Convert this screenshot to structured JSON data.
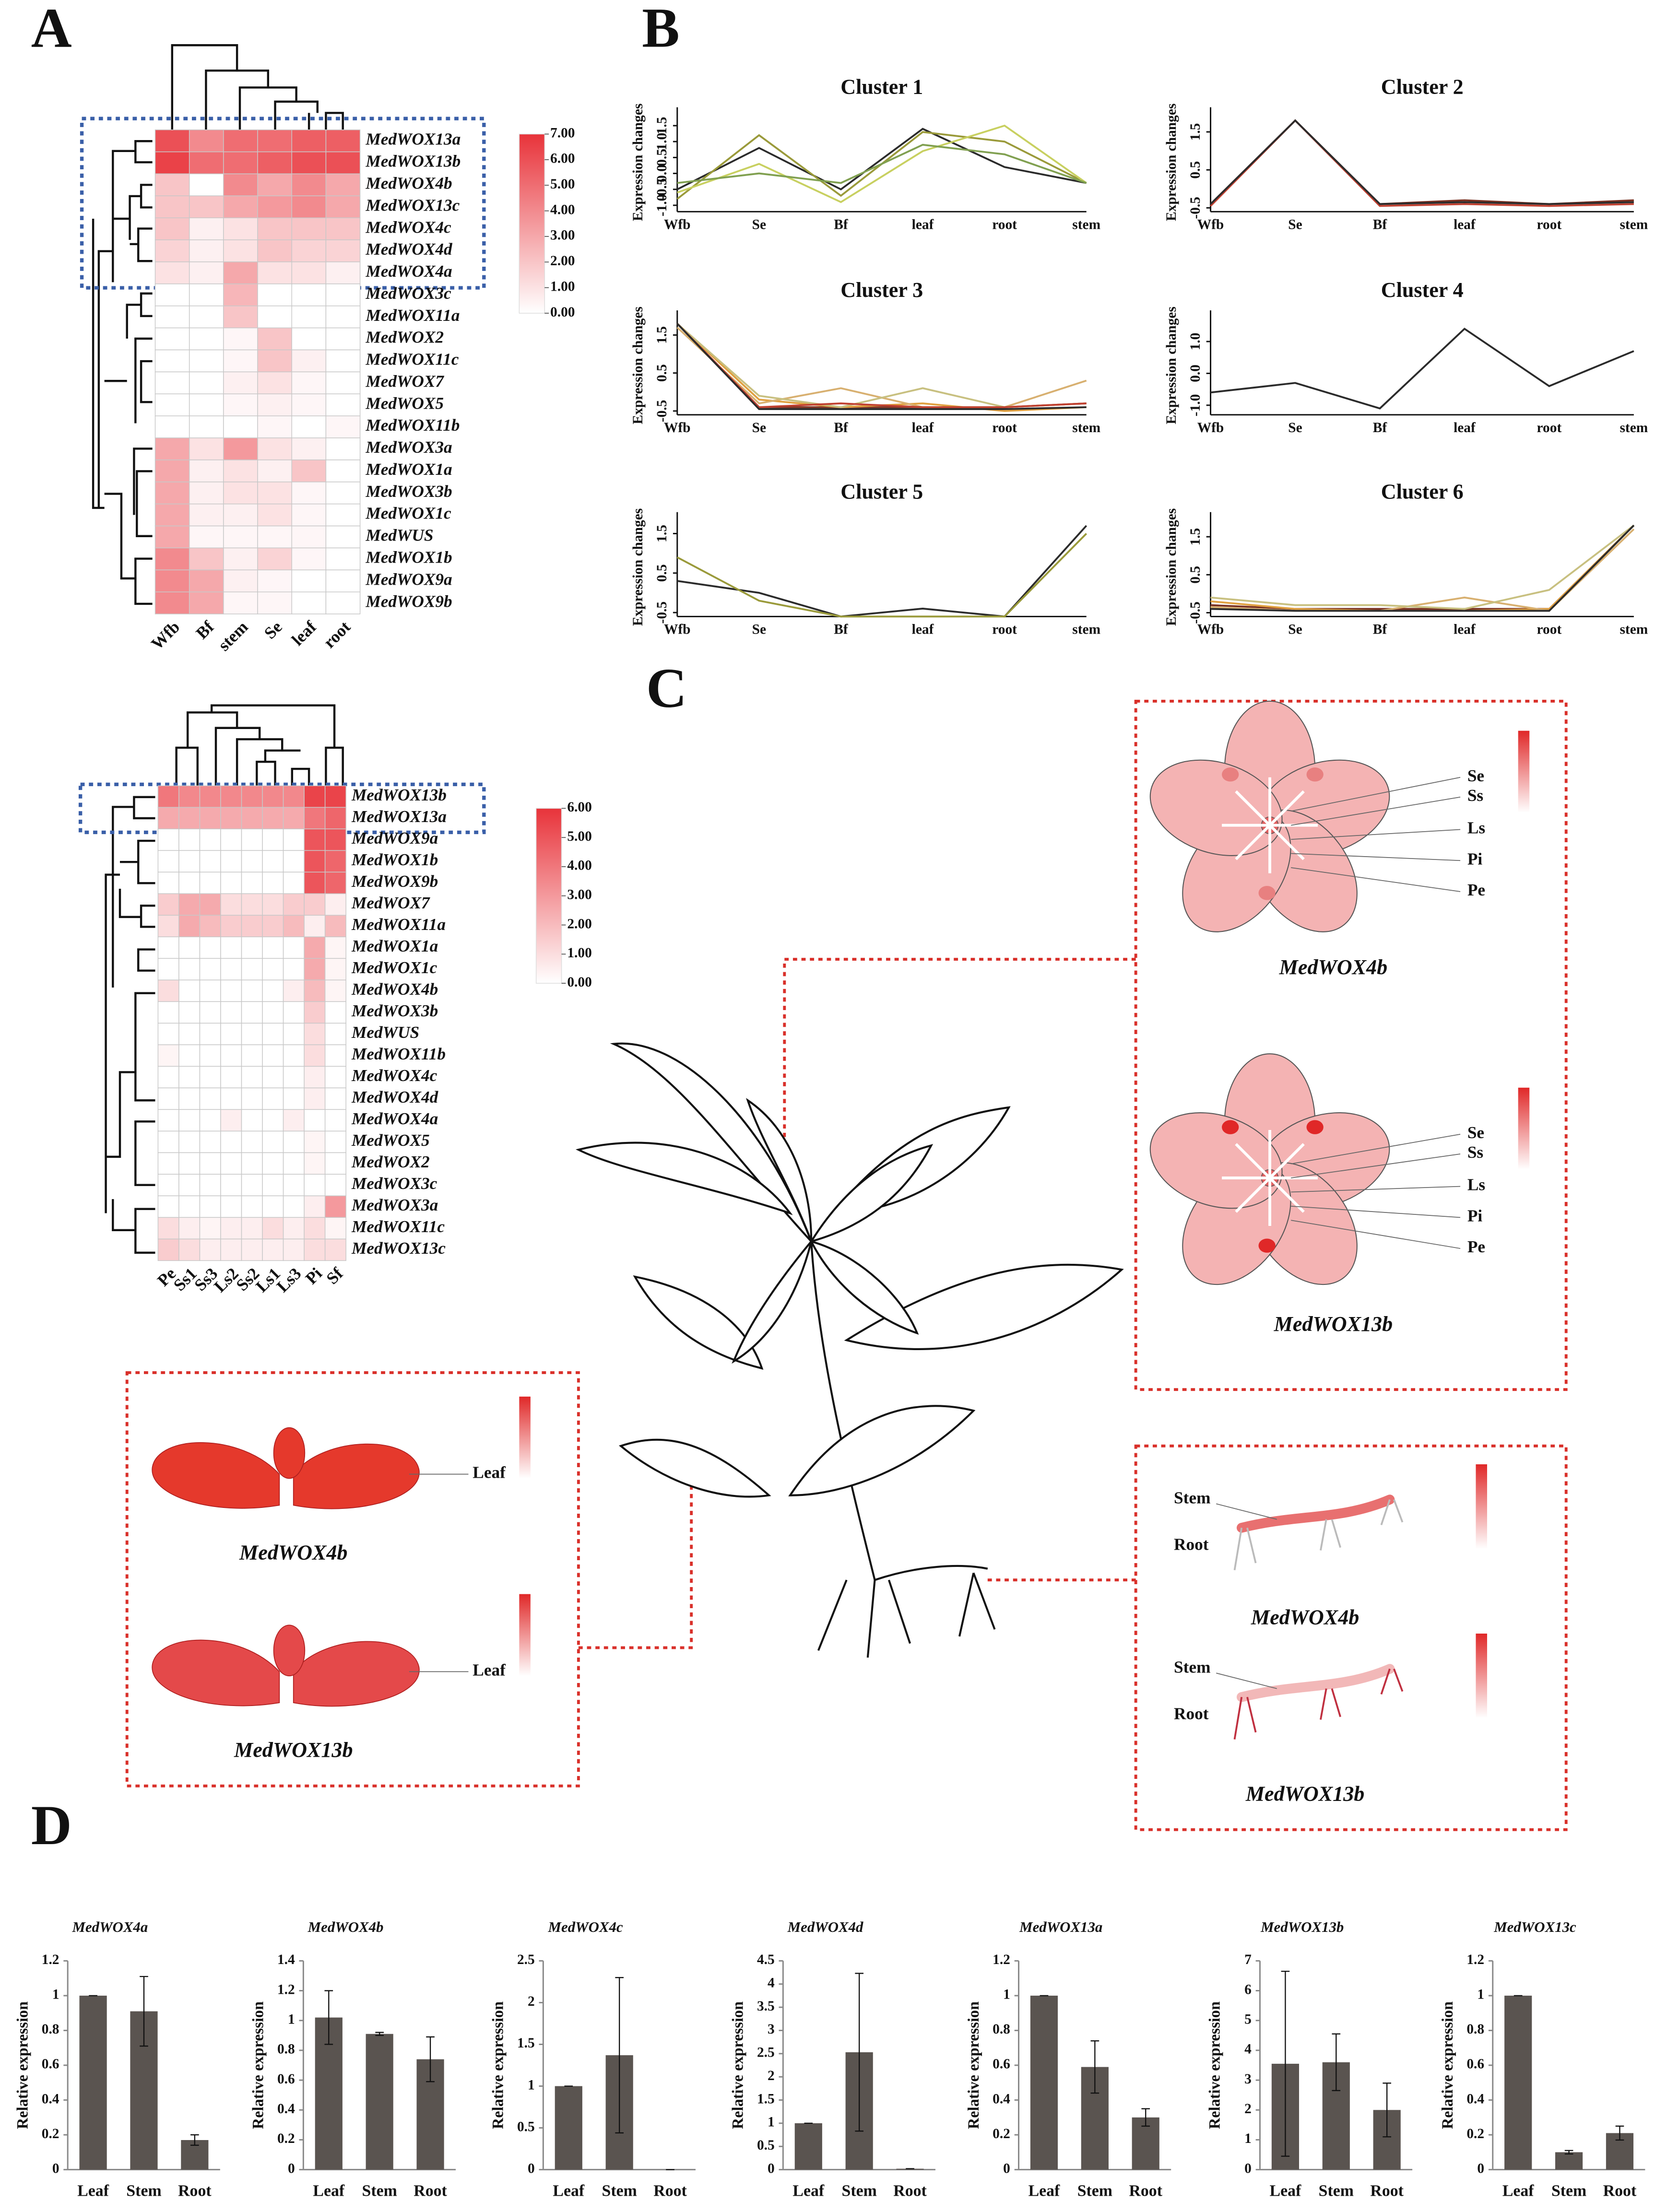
{
  "panel_labels": [
    "A",
    "B",
    "C",
    "D"
  ],
  "chart_data": [
    {
      "type": "heatmap",
      "columns": [
        "Wfb",
        "Bf",
        "stem",
        "Se",
        "leaf",
        "root"
      ],
      "rows": [
        "MedWOX13a",
        "MedWOX13b",
        "MedWOX4b",
        "MedWOX13c",
        "MedWOX4c",
        "MedWOX4d",
        "MedWOX4a",
        "MedWOX3c",
        "MedWOX11a",
        "MedWOX2",
        "MedWOX11c",
        "MedWOX7",
        "MedWOX5",
        "MedWOX11b",
        "MedWOX3a",
        "MedWOX1a",
        "MedWOX3b",
        "MedWOX1c",
        "MedWUS",
        "MedWOX1b",
        "MedWOX9a",
        "MedWOX9b"
      ],
      "values": [
        [
          6,
          4,
          5,
          5,
          5.5,
          5.5
        ],
        [
          6.5,
          5,
          5,
          5.5,
          6,
          6
        ],
        [
          2,
          0,
          4,
          3,
          4,
          3
        ],
        [
          2,
          2,
          3,
          3.5,
          4,
          3
        ],
        [
          2,
          0.5,
          1,
          2,
          2,
          2
        ],
        [
          1.5,
          0.5,
          1,
          2,
          1.5,
          1.5
        ],
        [
          1,
          0.5,
          3,
          1,
          1,
          0.5
        ],
        [
          0,
          0,
          2.5,
          0,
          0,
          0
        ],
        [
          0,
          0,
          2,
          0,
          0,
          0
        ],
        [
          0,
          0,
          0.3,
          2,
          0,
          0
        ],
        [
          0,
          0,
          0.3,
          2,
          0.5,
          0
        ],
        [
          0,
          0,
          0.5,
          1,
          0.3,
          0
        ],
        [
          0,
          0,
          0.3,
          0.5,
          0.3,
          0
        ],
        [
          0,
          0,
          0,
          0.3,
          0,
          0.3
        ],
        [
          3,
          1,
          3.5,
          1,
          0.5,
          0
        ],
        [
          3,
          0.5,
          1,
          0.5,
          2,
          0
        ],
        [
          3,
          0.5,
          1,
          1,
          0.3,
          0
        ],
        [
          3,
          0.5,
          0.5,
          1,
          0.3,
          0
        ],
        [
          3,
          0.3,
          0.3,
          0.3,
          0.3,
          0
        ],
        [
          4,
          2,
          0.5,
          1.5,
          0.3,
          0
        ],
        [
          4,
          3,
          0.5,
          0.3,
          0,
          0
        ],
        [
          4,
          3,
          0.3,
          0.3,
          0,
          0
        ]
      ],
      "clim": [
        0,
        7
      ],
      "colors": [
        "#ffffff",
        "#e8333a"
      ],
      "colorbar_ticks": [
        {
          "value": 0,
          "label": "0.00"
        },
        {
          "value": 1,
          "label": "1.00"
        },
        {
          "value": 2,
          "label": "2.00"
        },
        {
          "value": 3,
          "label": "3.00"
        },
        {
          "value": 4,
          "label": "4.00"
        },
        {
          "value": 5,
          "label": "5.00"
        },
        {
          "value": 6,
          "label": "6.00"
        },
        {
          "value": 7,
          "label": "7.00"
        }
      ]
    },
    {
      "type": "heatmap",
      "columns": [
        "Pe",
        "Ss1",
        "Ss3",
        "Ls2",
        "Ss2",
        "Ls1",
        "Ls3",
        "Pi",
        "Sf"
      ],
      "rows": [
        "MedWOX13b",
        "MedWOX13a",
        "MedWOX9a",
        "MedWOX1b",
        "MedWOX9b",
        "MedWOX7",
        "MedWOX11a",
        "MedWOX1a",
        "MedWOX1c",
        "MedWOX4b",
        "MedWOX3b",
        "MedWUS",
        "MedWOX11b",
        "MedWOX4c",
        "MedWOX4d",
        "MedWOX4a",
        "MedWOX5",
        "MedWOX2",
        "MedWOX3c",
        "MedWOX3a",
        "MedWOX11c",
        "MedWOX13c"
      ],
      "values": [
        [
          4,
          3.5,
          3.5,
          3.5,
          3.5,
          3.5,
          3.5,
          5.5,
          5.5
        ],
        [
          2.5,
          2.5,
          2.5,
          2.5,
          2.5,
          2.5,
          2.5,
          4,
          4.5
        ],
        [
          0,
          0,
          0,
          0,
          0,
          0,
          0,
          5,
          5
        ],
        [
          0,
          0,
          0,
          0,
          0,
          0,
          0,
          5,
          4.5
        ],
        [
          0,
          0,
          0,
          0,
          0,
          0,
          0,
          5,
          4.5
        ],
        [
          1.5,
          2.5,
          2.5,
          1,
          1,
          1,
          1.5,
          1.5,
          0.5
        ],
        [
          1,
          2.5,
          2,
          1.5,
          1.5,
          1.5,
          2,
          0.5,
          2
        ],
        [
          0,
          0,
          0,
          0,
          0,
          0,
          0,
          2.5,
          0.3
        ],
        [
          0,
          0,
          0,
          0,
          0,
          0,
          0,
          2.5,
          0.3
        ],
        [
          1,
          0,
          0,
          0,
          0,
          0,
          0.5,
          2,
          0.3
        ],
        [
          0,
          0,
          0,
          0,
          0,
          0,
          0,
          1.5,
          0
        ],
        [
          0,
          0,
          0,
          0,
          0,
          0,
          0,
          1,
          0
        ],
        [
          0.3,
          0,
          0,
          0,
          0,
          0,
          0,
          1,
          0
        ],
        [
          0,
          0,
          0,
          0,
          0,
          0,
          0,
          0.5,
          0
        ],
        [
          0,
          0,
          0,
          0,
          0,
          0,
          0,
          0.5,
          0
        ],
        [
          0,
          0,
          0,
          0.5,
          0,
          0,
          0.5,
          0,
          0
        ],
        [
          0,
          0,
          0,
          0,
          0,
          0,
          0,
          0.3,
          0
        ],
        [
          0,
          0,
          0,
          0,
          0,
          0,
          0,
          0.3,
          0
        ],
        [
          0,
          0,
          0,
          0,
          0,
          0,
          0,
          0,
          0
        ],
        [
          0,
          0,
          0,
          0,
          0,
          0,
          0,
          0.5,
          3
        ],
        [
          1,
          0.5,
          0.3,
          0.5,
          0.5,
          1,
          0.5,
          1,
          0.3
        ],
        [
          1.5,
          1,
          0.5,
          0.5,
          0.5,
          0.5,
          0.5,
          1,
          1
        ]
      ],
      "clim": [
        0,
        6
      ],
      "colors": [
        "#ffffff",
        "#e8333a"
      ],
      "colorbar_ticks": [
        {
          "value": 0,
          "label": "0.00"
        },
        {
          "value": 1,
          "label": "1.00"
        },
        {
          "value": 2,
          "label": "2.00"
        },
        {
          "value": 3,
          "label": "3.00"
        },
        {
          "value": 4,
          "label": "4.00"
        },
        {
          "value": 5,
          "label": "5.00"
        },
        {
          "value": 6,
          "label": "6.00"
        }
      ]
    },
    {
      "type": "line",
      "title": "Cluster 1",
      "y_label": "Expression changes",
      "categories": [
        "Wfb",
        "Se",
        "Bf",
        "leaf",
        "root",
        "stem"
      ],
      "ylim": [
        -1.2,
        1.9
      ],
      "yticks": [
        {
          "value": -1,
          "label": "-1.0"
        },
        -0.5,
        {
          "value": 0,
          "label": "0.0"
        },
        0.5,
        {
          "value": 1,
          "label": "1.0"
        },
        1.5
      ],
      "series": [
        {
          "color": "#2b2b2b",
          "values": [
            -0.5,
            0.8,
            -0.5,
            1.4,
            0.2,
            -0.3
          ]
        },
        {
          "color": "#9a9a3a",
          "values": [
            -0.8,
            1.2,
            -0.7,
            1.3,
            1.0,
            -0.3
          ]
        },
        {
          "color": "#c8d060",
          "values": [
            -0.6,
            0.3,
            -0.9,
            0.7,
            1.5,
            -0.3
          ]
        },
        {
          "color": "#80a050",
          "values": [
            -0.3,
            0,
            -0.3,
            0.9,
            0.6,
            -0.3
          ]
        }
      ]
    },
    {
      "type": "line",
      "title": "Cluster 2",
      "y_label": "Expression changes",
      "categories": [
        "Wfb",
        "Se",
        "Bf",
        "leaf",
        "root",
        "stem"
      ],
      "ylim": [
        -0.6,
        2.0
      ],
      "yticks": [
        -0.5,
        0.5,
        1.5
      ],
      "series": [
        {
          "color": "#7a3020",
          "values": [
            -0.4,
            1.8,
            -0.4,
            -0.3,
            -0.4,
            -0.3
          ]
        },
        {
          "color": "#c04030",
          "values": [
            -0.45,
            1.8,
            -0.45,
            -0.4,
            -0.45,
            -0.4
          ]
        },
        {
          "color": "#2b2b2b",
          "values": [
            -0.4,
            1.8,
            -0.4,
            -0.35,
            -0.4,
            -0.35
          ]
        }
      ]
    },
    {
      "type": "line",
      "title": "Cluster 3",
      "y_label": "Expression changes",
      "categories": [
        "Wfb",
        "Se",
        "Bf",
        "leaf",
        "root",
        "stem"
      ],
      "ylim": [
        -0.6,
        2.0
      ],
      "yticks": [
        -0.5,
        0.5,
        1.5
      ],
      "series": [
        {
          "color": "#7a3020",
          "values": [
            1.8,
            -0.4,
            -0.4,
            -0.4,
            -0.4,
            -0.3
          ]
        },
        {
          "color": "#e0a040",
          "values": [
            1.8,
            -0.2,
            -0.4,
            -0.3,
            -0.5,
            -0.4
          ]
        },
        {
          "color": "#d8b070",
          "values": [
            1.7,
            -0.3,
            0.1,
            -0.4,
            -0.4,
            0.3
          ]
        },
        {
          "color": "#c8c080",
          "values": [
            1.8,
            -0.1,
            -0.4,
            0.1,
            -0.4,
            -0.3
          ]
        },
        {
          "color": "#c04030",
          "values": [
            1.8,
            -0.4,
            -0.3,
            -0.4,
            -0.4,
            -0.3
          ]
        },
        {
          "color": "#2b2b2b",
          "values": [
            1.8,
            -0.45,
            -0.45,
            -0.45,
            -0.45,
            -0.4
          ]
        }
      ]
    },
    {
      "type": "line",
      "title": "Cluster 4",
      "y_label": "Expression changes",
      "categories": [
        "Wfb",
        "Se",
        "Bf",
        "leaf",
        "root",
        "stem"
      ],
      "ylim": [
        -1.3,
        1.8
      ],
      "yticks": [
        {
          "value": -1,
          "label": "-1.0"
        },
        {
          "value": 0,
          "label": "0.0"
        },
        {
          "value": 1,
          "label": "1.0"
        }
      ],
      "series": [
        {
          "color": "#2b2b2b",
          "values": [
            -0.6,
            -0.3,
            -1.1,
            1.4,
            -0.4,
            0.7
          ]
        }
      ]
    },
    {
      "type": "line",
      "title": "Cluster 5",
      "y_label": "Expression changes",
      "categories": [
        "Wfb",
        "Se",
        "Bf",
        "leaf",
        "root",
        "stem"
      ],
      "ylim": [
        -0.6,
        1.9
      ],
      "yticks": [
        -0.5,
        0.5,
        1.5
      ],
      "series": [
        {
          "color": "#2b2b2b",
          "values": [
            0.3,
            0,
            -0.6,
            -0.4,
            -0.6,
            1.7
          ]
        },
        {
          "color": "#9a9a3a",
          "values": [
            0.9,
            -0.2,
            -0.6,
            -0.6,
            -0.6,
            1.5
          ]
        }
      ]
    },
    {
      "type": "line",
      "title": "Cluster 6",
      "y_label": "Expression changes",
      "categories": [
        "Wfb",
        "Se",
        "Bf",
        "leaf",
        "root",
        "stem"
      ],
      "ylim": [
        -0.6,
        2.0
      ],
      "yticks": [
        -0.5,
        0.5,
        1.5
      ],
      "series": [
        {
          "color": "#7a3020",
          "values": [
            -0.3,
            -0.4,
            -0.4,
            -0.4,
            -0.4,
            1.8
          ]
        },
        {
          "color": "#e0a040",
          "values": [
            -0.2,
            -0.4,
            -0.45,
            -0.45,
            -0.4,
            1.8
          ]
        },
        {
          "color": "#d8b070",
          "values": [
            -0.35,
            -0.45,
            -0.45,
            -0.1,
            -0.45,
            1.7
          ]
        },
        {
          "color": "#c8c080",
          "values": [
            -0.1,
            -0.3,
            -0.3,
            -0.4,
            0.1,
            1.8
          ]
        },
        {
          "color": "#2b2b2b",
          "values": [
            -0.4,
            -0.45,
            -0.45,
            -0.45,
            -0.45,
            1.8
          ]
        }
      ]
    },
    {
      "type": "bar",
      "title": "MedWOX4a",
      "y_label": "Relative expression",
      "categories": [
        "Leaf",
        "Stem",
        "Root"
      ],
      "values": [
        1,
        0.91,
        0.17
      ],
      "errors": [
        0,
        0.2,
        0.03
      ],
      "color": "#5a5450",
      "ylim": [
        0,
        1.2
      ],
      "yticks": [
        0,
        0.2,
        0.4,
        0.6,
        0.8,
        1,
        1.2
      ]
    },
    {
      "type": "bar",
      "title": "MedWOX4b",
      "y_label": "Relative expression",
      "categories": [
        "Leaf",
        "Stem",
        "Root"
      ],
      "values": [
        1.02,
        0.91,
        0.74
      ],
      "errors": [
        0.18,
        0.01,
        0.15
      ],
      "color": "#5a5450",
      "ylim": [
        0,
        1.4
      ],
      "yticks": [
        0,
        0.2,
        0.4,
        0.6,
        0.8,
        1,
        1.2,
        1.4
      ]
    },
    {
      "type": "bar",
      "title": "MedWOX4c",
      "y_label": "Relative expression",
      "categories": [
        "Leaf",
        "Stem",
        "Root"
      ],
      "values": [
        1,
        1.37,
        0
      ],
      "errors": [
        0,
        0.93,
        0
      ],
      "color": "#5a5450",
      "ylim": [
        0,
        2.5
      ],
      "yticks": [
        0,
        0.5,
        1,
        1.5,
        2,
        2.5
      ]
    },
    {
      "type": "bar",
      "title": "MedWOX4d",
      "y_label": "Relative expression",
      "categories": [
        "Leaf",
        "Stem",
        "Root"
      ],
      "values": [
        1,
        2.53,
        0.02
      ],
      "errors": [
        0,
        1.7,
        0
      ],
      "color": "#5a5450",
      "ylim": [
        0,
        4.5
      ],
      "yticks": [
        0,
        0.5,
        1,
        1.5,
        2,
        2.5,
        3,
        3.5,
        4,
        4.5
      ]
    },
    {
      "type": "bar",
      "title": "MedWOX13a",
      "y_label": "Relative expression",
      "categories": [
        "Leaf",
        "Stem",
        "Root"
      ],
      "values": [
        1,
        0.59,
        0.3
      ],
      "errors": [
        0,
        0.15,
        0.05
      ],
      "color": "#5a5450",
      "ylim": [
        0,
        1.2
      ],
      "yticks": [
        0,
        0.2,
        0.4,
        0.6,
        0.8,
        1,
        1.2
      ]
    },
    {
      "type": "bar",
      "title": "MedWOX13b",
      "y_label": "Relative expression",
      "categories": [
        "Leaf",
        "Stem",
        "Root"
      ],
      "values": [
        3.55,
        3.6,
        2
      ],
      "errors": [
        3.1,
        0.95,
        0.9
      ],
      "color": "#5a5450",
      "ylim": [
        0,
        7
      ],
      "yticks": [
        0,
        1,
        2,
        3,
        4,
        5,
        6,
        7
      ]
    },
    {
      "type": "bar",
      "title": "MedWOX13c",
      "y_label": "Relative expression",
      "categories": [
        "Leaf",
        "Stem",
        "Root"
      ],
      "values": [
        1,
        0.1,
        0.21
      ],
      "errors": [
        0,
        0.01,
        0.04
      ],
      "color": "#5a5450",
      "ylim": [
        0,
        1.2
      ],
      "yticks": [
        0,
        0.2,
        0.4,
        0.6,
        0.8,
        1,
        1.2
      ]
    }
  ],
  "diagrams": {
    "flower": {
      "labels": [
        "Se",
        "Ss",
        "Ls",
        "Pi",
        "Pe"
      ],
      "genes": [
        "MedWOX4b",
        "MedWOX13b"
      ]
    },
    "leaf": {
      "label": "Leaf",
      "genes": [
        "MedWOX4b",
        "MedWOX13b"
      ]
    },
    "stem_root": {
      "labels": [
        "Stem",
        "Root"
      ],
      "genes": [
        "MedWOX4b",
        "MedWOX13b"
      ]
    }
  }
}
